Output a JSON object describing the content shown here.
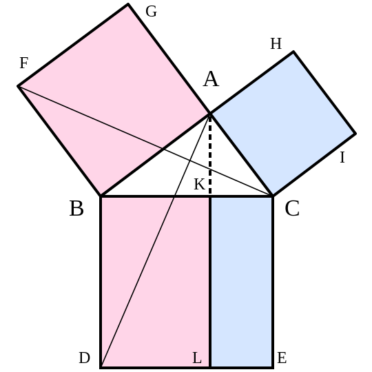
{
  "colors": {
    "pink": "#ffd5e8",
    "blue": "#d5e6ff",
    "stroke": "#000000",
    "background": "#ffffff"
  },
  "labels": {
    "A": "A",
    "B": "B",
    "C": "C",
    "D": "D",
    "E": "E",
    "F": "F",
    "G": "G",
    "H": "H",
    "I": "I",
    "K": "K",
    "L": "L"
  }
}
